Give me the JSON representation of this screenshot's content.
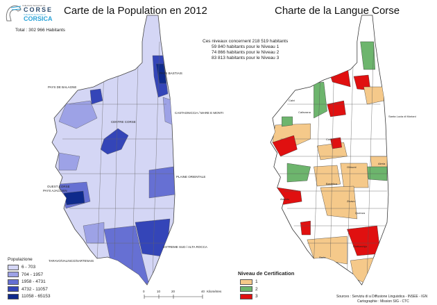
{
  "logo": {
    "line1": "Collectivité Territoriale de",
    "line2": "CORSE",
    "line3": "Cullettività Territuriale di",
    "line4": "CORSICA"
  },
  "left_map": {
    "title": "Carte de la Population en 2012",
    "total": "Total : 302 966 Habitants",
    "regions": [
      "PAYS BASTIAIS",
      "PAYS DE BALAGNE",
      "CASTAGNICCIA / MARE E MONTI",
      "CENTRE CORSE",
      "PLAINE ORIENTALE",
      "OUEST CORSE",
      "PAYS AJACCIEN",
      "EXTREME SUD / ALTA ROCCA",
      "TARAVO/VALINCO/SARTENAIS"
    ],
    "legend": {
      "title": "Populazione",
      "items": [
        {
          "label": "6 - 703",
          "color": "#d4d6f5"
        },
        {
          "label": "704 - 1957",
          "color": "#9da2e6"
        },
        {
          "label": "1958 - 4731",
          "color": "#6670d3"
        },
        {
          "label": "4732 - 11057",
          "color": "#3445b8"
        },
        {
          "label": "11058 - 65153",
          "color": "#0f2a8c"
        }
      ]
    },
    "scale": {
      "ticks": [
        "0",
        "10",
        "20",
        "40"
      ],
      "unit": "Kilomètres"
    }
  },
  "right_map": {
    "title": "Charte de la Langue Corse",
    "summary": [
      "Ces niveaux concernent 218 519 habitants",
      "59 840 habitants pour le Niveau 1",
      "74 866 habitants pour le Niveau 2",
      "83 813 habitants pour le Niveau 3"
    ],
    "places": [
      "Calvi",
      "Calinzana",
      "Santa Lucia di Moriani",
      "Corti",
      "Ghisoni",
      "Aleria",
      "Bastelica",
      "Aiacciu",
      "Zicavu",
      "Quenza",
      "Portivechju",
      "Sarte"
    ],
    "legend": {
      "title": "Niveau de Certification",
      "items": [
        {
          "label": "1",
          "color": "#f5c98a"
        },
        {
          "label": "2",
          "color": "#6db56d"
        },
        {
          "label": "3",
          "color": "#e01010"
        }
      ]
    },
    "sources": "Sources : Serviziu di a Diffusione Linguistica - INSEE - IGN",
    "cartography": "Cartographie : Mission SIG - CTC"
  }
}
